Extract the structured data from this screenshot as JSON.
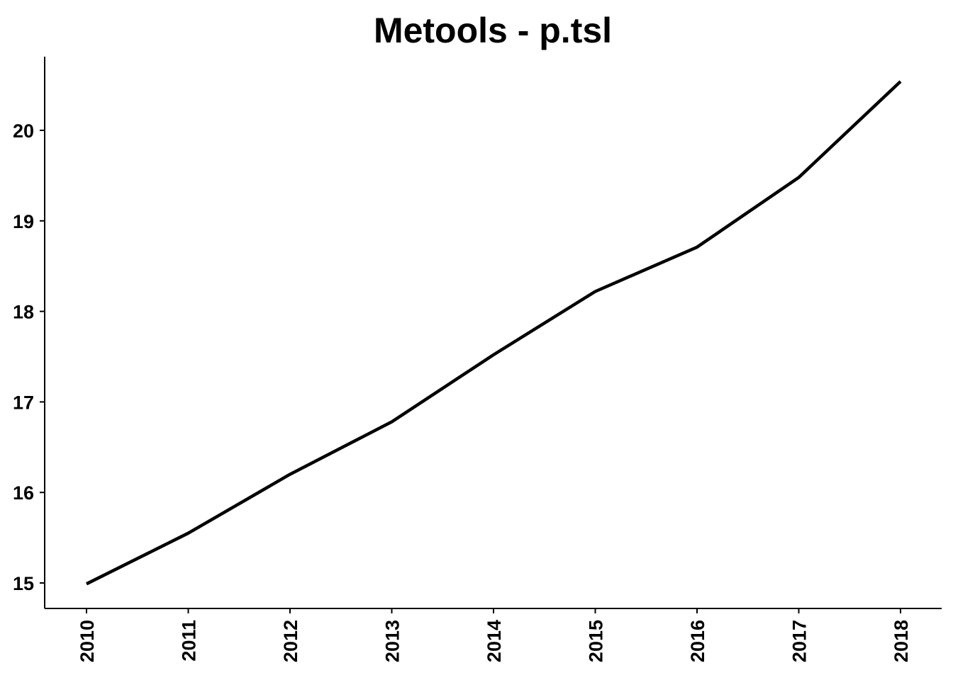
{
  "chart_data": {
    "type": "line",
    "title": "Metools - p.tsl",
    "xlabel": "",
    "ylabel": "",
    "x": [
      2010,
      2011,
      2012,
      2013,
      2014,
      2015,
      2016,
      2017,
      2018
    ],
    "x_tick_labels": [
      "2010",
      "2011",
      "2012",
      "2013",
      "2014",
      "2015",
      "2016",
      "2017",
      "2018"
    ],
    "y_ticks": [
      15,
      16,
      17,
      18,
      19,
      20
    ],
    "y_tick_labels": [
      "15",
      "16",
      "17",
      "18",
      "19",
      "20"
    ],
    "xlim": [
      2009.6,
      2018.4
    ],
    "ylim": [
      14.72,
      20.82
    ],
    "grid": false,
    "legend": "none",
    "series": [
      {
        "values": [
          14.99,
          15.55,
          16.2,
          16.78,
          17.52,
          18.22,
          18.71,
          19.48,
          20.54
        ],
        "color": "#000000"
      }
    ]
  }
}
